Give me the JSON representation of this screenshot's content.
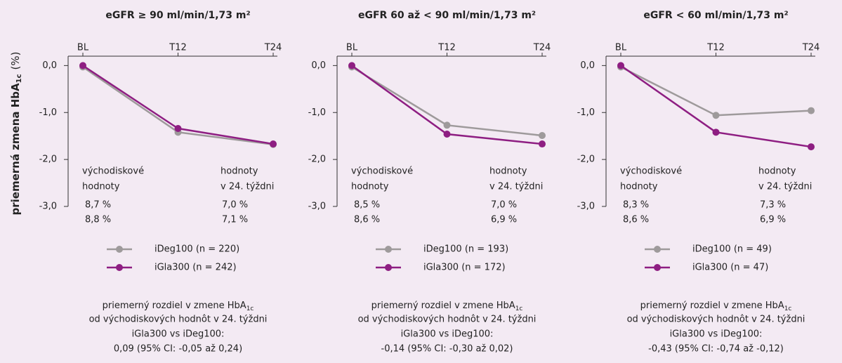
{
  "chart_data": [
    {
      "type": "line",
      "title": "eGFR ≥ 90 ml/min/1,73 m²",
      "ylabel": {
        "text": "priemerná zmena HbA",
        "sub": "1c",
        "unit": "(%)"
      },
      "categories": [
        "BL",
        "T12",
        "T24"
      ],
      "ylim": [
        -3.0,
        0.2
      ],
      "yticks": [
        {
          "value": 0,
          "label": "0,0"
        },
        {
          "value": -1,
          "label": "-1,0"
        },
        {
          "value": -2,
          "label": "-2,0"
        },
        {
          "value": -3,
          "label": "-3,0"
        }
      ],
      "series": [
        {
          "name": "iDeg100 (n = 220)",
          "color": "#9e9a9b",
          "values": [
            -0.03,
            -1.42,
            -1.68
          ],
          "baseline": "8,7 %",
          "week24": "7,0 %"
        },
        {
          "name": "iGla300 (n = 242)",
          "color": "#8e1e82",
          "values": [
            0,
            -1.34,
            -1.67
          ],
          "baseline": "8,8 %",
          "week24": "7,1 %"
        }
      ],
      "annotations": {
        "baseline": [
          "východiskové",
          "hodnoty"
        ],
        "week24": [
          "hodnoty",
          "v 24. týždni"
        ]
      },
      "note": {
        "heading": "priemerný rozdiel v zmene HbA",
        "heading_sub": "1c",
        "lines": [
          "od východiskových hodnôt v 24. týždni",
          "iGla300 vs iDeg100:",
          "0,09 (95% CI: -0,05 až 0,24)"
        ]
      }
    },
    {
      "type": "line",
      "title": "eGFR 60 až < 90 ml/min/1,73 m²",
      "categories": [
        "BL",
        "T12",
        "T24"
      ],
      "ylim": [
        -3.0,
        0.2
      ],
      "yticks": [
        {
          "value": 0,
          "label": "0,0"
        },
        {
          "value": -1,
          "label": "-1,0"
        },
        {
          "value": -2,
          "label": "-2,0"
        },
        {
          "value": -3,
          "label": "-3,0"
        }
      ],
      "series": [
        {
          "name": "iDeg100 (n = 193)",
          "color": "#9e9a9b",
          "values": [
            -0.03,
            -1.27,
            -1.49
          ],
          "baseline": "8,5 %",
          "week24": "7,0 %"
        },
        {
          "name": "iGla300 (n = 172)",
          "color": "#8e1e82",
          "values": [
            0,
            -1.46,
            -1.67
          ],
          "baseline": "8,6 %",
          "week24": "6,9 %"
        }
      ],
      "annotations": {
        "baseline": [
          "východiskové",
          "hodnoty"
        ],
        "week24": [
          "hodnoty",
          "v 24. týždni"
        ]
      },
      "note": {
        "heading": "priemerný rozdiel v zmene HbA",
        "heading_sub": "1c",
        "lines": [
          "od východiskových hodnôt v 24. týždni",
          "iGla300 vs iDeg100:",
          "-0,14 (95% CI: -0,30 až 0,02)"
        ]
      }
    },
    {
      "type": "line",
      "title": "eGFR < 60 ml/min/1,73 m²",
      "categories": [
        "BL",
        "T12",
        "T24"
      ],
      "ylim": [
        -3.0,
        0.2
      ],
      "yticks": [
        {
          "value": 0,
          "label": "0,0"
        },
        {
          "value": -1,
          "label": "-1,0"
        },
        {
          "value": -2,
          "label": "-2,0"
        },
        {
          "value": -3,
          "label": "-3,0"
        }
      ],
      "series": [
        {
          "name": "iDeg100 (n = 49)",
          "color": "#9e9a9b",
          "values": [
            -0.03,
            -1.06,
            -0.96
          ],
          "baseline": "8,3 %",
          "week24": "7,3 %"
        },
        {
          "name": "iGla300 (n = 47)",
          "color": "#8e1e82",
          "values": [
            0,
            -1.42,
            -1.73
          ],
          "baseline": "8,6 %",
          "week24": "6,9 %"
        }
      ],
      "annotations": {
        "baseline": [
          "východiskové",
          "hodnoty"
        ],
        "week24": [
          "hodnoty",
          "v 24. týždni"
        ]
      },
      "note": {
        "heading": "priemerný rozdiel v zmene HbA",
        "heading_sub": "1c",
        "lines": [
          "od východiskových hodnôt v 24. týždni",
          "iGla300 vs iDeg100:",
          "-0,43 (95% CI: -0,74 až -0,12)"
        ]
      }
    }
  ]
}
